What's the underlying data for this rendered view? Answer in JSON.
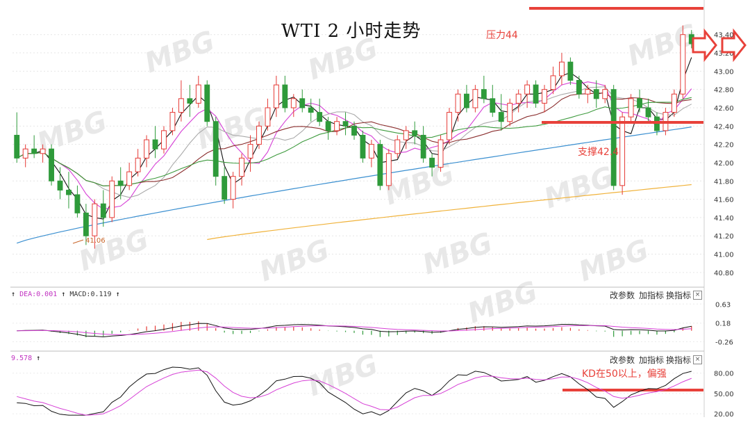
{
  "chart_title": "WTI 2 小时走势",
  "annotations": {
    "resistance": "压力44",
    "support": "支撑42.4",
    "kd_note": "KD在50以上，偏强",
    "low_marker": "41.06"
  },
  "toolbar": {
    "change_params": "改参数",
    "add_indicator": "加指标",
    "switch_indicator": "换指标",
    "close": "×"
  },
  "macd_panel": {
    "dea_label": "DEA:0.001",
    "macd_label": "MACD:0.119"
  },
  "kd_panel": {
    "value_label": "9.578"
  },
  "colors": {
    "up": "#e53935",
    "down": "#2e9a3a",
    "ma_black": "#111111",
    "ma_pink": "#d63fd6",
    "ma_gray": "#aaaaaa",
    "ma_darkred": "#8b2f2f",
    "ma_green": "#3d9a3d",
    "ma_blue": "#3a8fd0",
    "ma_orange": "#f0b23a",
    "annotation_red": "#e8413a"
  },
  "chart_data": [
    {
      "type": "candlestick",
      "title": "WTI 2 小时走势",
      "y_ticks": [
        "43.40",
        "43.20",
        "43.00",
        "42.80",
        "42.60",
        "42.40",
        "42.20",
        "42.00",
        "41.80",
        "41.60",
        "41.40",
        "41.20",
        "41.00",
        "40.80"
      ],
      "ylim": [
        40.7,
        43.55
      ],
      "resistance_level": 44,
      "support_level": 42.4,
      "low_point": 41.06,
      "candles": [
        [
          42.3,
          42.55,
          42.0,
          42.05
        ],
        [
          42.05,
          42.2,
          41.95,
          42.15
        ],
        [
          42.15,
          42.3,
          42.05,
          42.1
        ],
        [
          42.1,
          42.2,
          42.0,
          42.15
        ],
        [
          42.15,
          42.2,
          41.75,
          41.8
        ],
        [
          41.8,
          41.95,
          41.6,
          41.7
        ],
        [
          41.7,
          41.9,
          41.5,
          41.65
        ],
        [
          41.65,
          41.75,
          41.4,
          41.45
        ],
        [
          41.45,
          41.55,
          41.1,
          41.2
        ],
        [
          41.2,
          41.6,
          41.06,
          41.55
        ],
        [
          41.55,
          41.7,
          41.3,
          41.4
        ],
        [
          41.4,
          41.85,
          41.35,
          41.8
        ],
        [
          41.8,
          41.95,
          41.6,
          41.75
        ],
        [
          41.75,
          42.0,
          41.7,
          41.9
        ],
        [
          41.9,
          42.15,
          41.85,
          42.05
        ],
        [
          42.05,
          42.3,
          41.95,
          42.25
        ],
        [
          42.25,
          42.4,
          42.05,
          42.15
        ],
        [
          42.15,
          42.4,
          42.1,
          42.35
        ],
        [
          42.35,
          42.6,
          42.3,
          42.55
        ],
        [
          42.55,
          42.9,
          42.45,
          42.7
        ],
        [
          42.7,
          42.85,
          42.5,
          42.65
        ],
        [
          42.65,
          42.95,
          42.6,
          42.85
        ],
        [
          42.85,
          42.9,
          42.4,
          42.45
        ],
        [
          42.45,
          42.5,
          41.75,
          41.85
        ],
        [
          41.85,
          41.95,
          41.55,
          41.6
        ],
        [
          41.6,
          41.9,
          41.5,
          41.85
        ],
        [
          41.85,
          42.1,
          41.75,
          42.05
        ],
        [
          42.05,
          42.3,
          41.9,
          42.2
        ],
        [
          42.2,
          42.45,
          42.15,
          42.4
        ],
        [
          42.4,
          42.7,
          42.35,
          42.6
        ],
        [
          42.6,
          42.95,
          42.5,
          42.85
        ],
        [
          42.85,
          42.95,
          42.55,
          42.6
        ],
        [
          42.6,
          42.75,
          42.5,
          42.7
        ],
        [
          42.7,
          42.8,
          42.55,
          42.6
        ],
        [
          42.6,
          42.7,
          42.45,
          42.55
        ],
        [
          42.55,
          42.7,
          42.4,
          42.45
        ],
        [
          42.45,
          42.5,
          42.25,
          42.35
        ],
        [
          42.35,
          42.5,
          42.3,
          42.45
        ],
        [
          42.45,
          42.55,
          42.3,
          42.4
        ],
        [
          42.4,
          42.45,
          42.25,
          42.3
        ],
        [
          42.3,
          42.35,
          42.0,
          42.05
        ],
        [
          42.05,
          42.25,
          41.95,
          42.2
        ],
        [
          42.2,
          42.25,
          41.7,
          41.75
        ],
        [
          41.75,
          42.15,
          41.7,
          42.1
        ],
        [
          42.1,
          42.3,
          42.05,
          42.25
        ],
        [
          42.25,
          42.4,
          42.15,
          42.35
        ],
        [
          42.35,
          42.45,
          42.2,
          42.3
        ],
        [
          42.3,
          42.4,
          42.0,
          42.05
        ],
        [
          42.05,
          42.1,
          41.85,
          41.95
        ],
        [
          41.95,
          42.3,
          41.9,
          42.25
        ],
        [
          42.25,
          42.6,
          42.2,
          42.55
        ],
        [
          42.55,
          42.8,
          42.45,
          42.75
        ],
        [
          42.75,
          42.85,
          42.55,
          42.6
        ],
        [
          42.6,
          42.85,
          42.55,
          42.8
        ],
        [
          42.8,
          42.95,
          42.65,
          42.7
        ],
        [
          42.7,
          42.85,
          42.5,
          42.55
        ],
        [
          42.55,
          42.75,
          42.35,
          42.45
        ],
        [
          42.45,
          42.7,
          42.4,
          42.65
        ],
        [
          42.65,
          42.8,
          42.55,
          42.75
        ],
        [
          42.75,
          42.9,
          42.6,
          42.85
        ],
        [
          42.85,
          42.9,
          42.6,
          42.65
        ],
        [
          42.65,
          42.85,
          42.55,
          42.8
        ],
        [
          42.8,
          43.05,
          42.75,
          42.95
        ],
        [
          42.95,
          43.2,
          42.85,
          43.1
        ],
        [
          43.1,
          43.15,
          42.85,
          42.9
        ],
        [
          42.9,
          42.95,
          42.7,
          42.75
        ],
        [
          42.75,
          42.85,
          42.65,
          42.8
        ],
        [
          42.8,
          42.9,
          42.6,
          42.7
        ],
        [
          42.7,
          42.85,
          42.65,
          42.8
        ],
        [
          42.8,
          42.85,
          41.7,
          41.75
        ],
        [
          41.75,
          42.55,
          41.65,
          42.5
        ],
        [
          42.5,
          42.75,
          42.45,
          42.7
        ],
        [
          42.7,
          42.8,
          42.55,
          42.6
        ],
        [
          42.6,
          42.7,
          42.45,
          42.5
        ],
        [
          42.5,
          42.55,
          42.3,
          42.35
        ],
        [
          42.35,
          42.6,
          42.3,
          42.55
        ],
        [
          42.55,
          42.8,
          42.5,
          42.75
        ],
        [
          42.75,
          43.5,
          42.7,
          43.4
        ],
        [
          43.4,
          43.45,
          43.25,
          43.3
        ]
      ]
    },
    {
      "type": "macd",
      "y_ticks": [
        "0.63",
        "0.18",
        "-0.26"
      ],
      "ylim": [
        -0.4,
        0.75
      ],
      "dea": 0.001,
      "macd": 0.119
    },
    {
      "type": "kd",
      "y_ticks": [
        "80.00",
        "50.00",
        "20.00"
      ],
      "ylim": [
        15,
        95
      ],
      "value": 9.578,
      "reference_level": 50
    }
  ]
}
